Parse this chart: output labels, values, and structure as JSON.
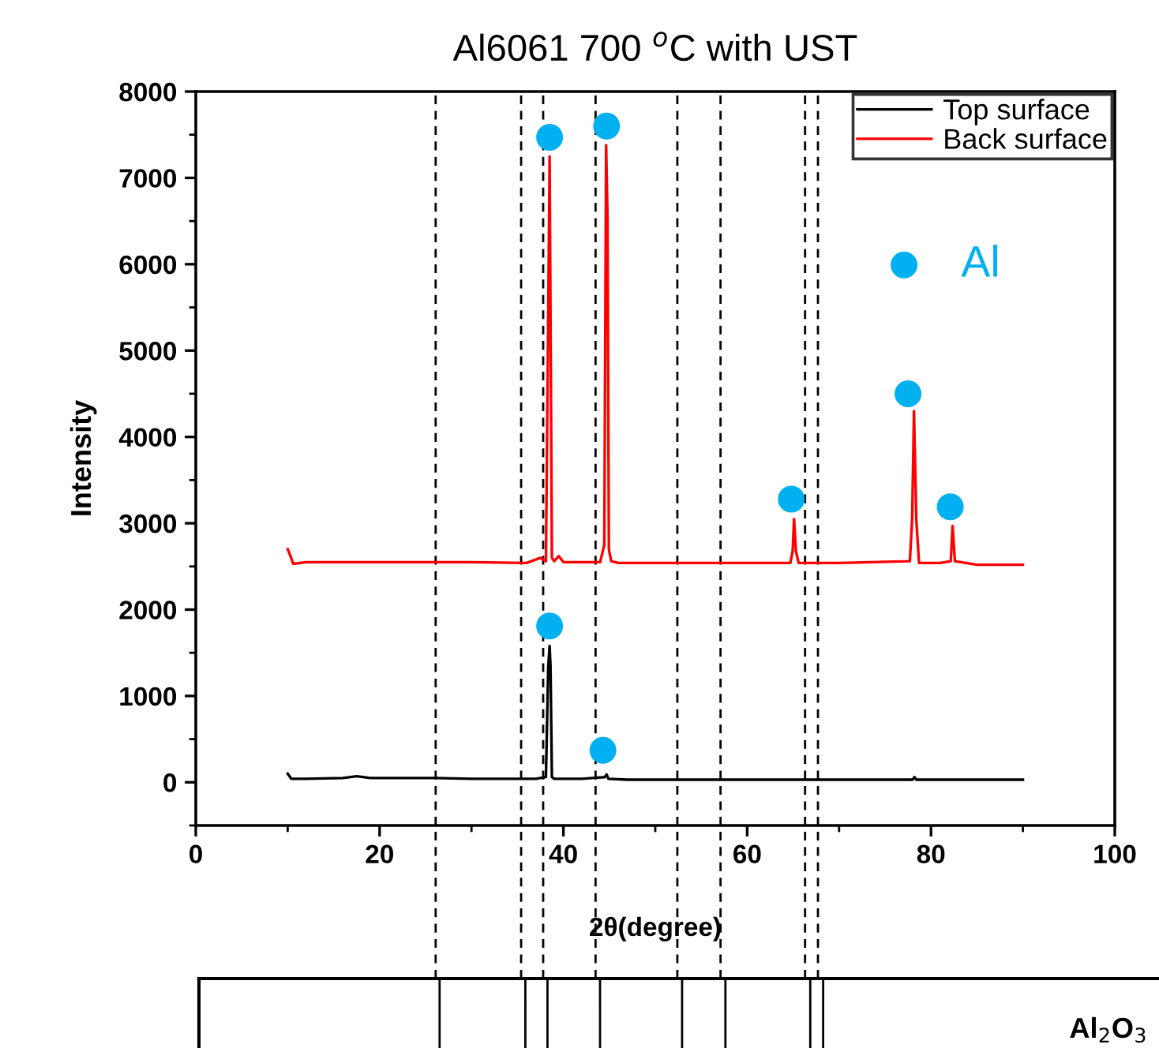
{
  "chart_data": {
    "type": "line",
    "title": "Al6061 700 $^{o}$C with UST",
    "xlabel": "2θ(degree)",
    "ylabel": "Intensity",
    "xlim": [
      0,
      100
    ],
    "xticks": [
      0,
      20,
      40,
      60,
      80,
      100
    ],
    "ylim": [
      -500,
      8000
    ],
    "yticks": [
      0,
      1000,
      2000,
      3000,
      4000,
      5000,
      6000,
      7000,
      8000
    ],
    "grid": false,
    "legend": "top right",
    "series": [
      {
        "name": "Top surface",
        "color": "#000000",
        "x": [
          10,
          10.4,
          12,
          16,
          17.5,
          19,
          26,
          30,
          37,
          38.1,
          38.35,
          38.5,
          38.6,
          38.75,
          39,
          42,
          44.5,
          44.7,
          44.9,
          47,
          55,
          66,
          70,
          78,
          78.2,
          78.4,
          85,
          90
        ],
        "values": [
          100,
          40,
          40,
          50,
          70,
          50,
          50,
          40,
          40,
          60,
          1340,
          1580,
          1340,
          60,
          40,
          40,
          60,
          90,
          40,
          30,
          30,
          30,
          30,
          30,
          60,
          30,
          30,
          30
        ]
      },
      {
        "name": "Back surface",
        "color": "#ff0000",
        "x": [
          10,
          10.3,
          10.6,
          12,
          20,
          26,
          30,
          36,
          37.5,
          38.1,
          38.35,
          38.5,
          38.6,
          38.75,
          39,
          39.5,
          40,
          44,
          44.45,
          44.65,
          44.8,
          44.95,
          45.2,
          46,
          55,
          64.7,
          64.95,
          65.1,
          65.3,
          65.6,
          70,
          77.7,
          77.95,
          78.15,
          78.4,
          78.7,
          81,
          82.15,
          82.35,
          82.6,
          85,
          90
        ],
        "values": [
          2700,
          2620,
          2530,
          2550,
          2550,
          2550,
          2550,
          2540,
          2600,
          2560,
          5400,
          7250,
          5400,
          2600,
          2560,
          2620,
          2550,
          2550,
          2750,
          7380,
          6550,
          2700,
          2560,
          2540,
          2540,
          2540,
          2680,
          3050,
          2680,
          2540,
          2540,
          2560,
          3050,
          4300,
          3050,
          2540,
          2540,
          2560,
          2970,
          2560,
          2520,
          2520
        ]
      },
      {
        "name": "Al",
        "type": "scatter",
        "marker": "circle",
        "color": "#00b0f0",
        "x": [
          38.5,
          44.7,
          64.8,
          77.5,
          82.1,
          38.5,
          44.3
        ],
        "values": [
          7470,
          7600,
          3280,
          4500,
          3190,
          1810,
          370
        ]
      }
    ],
    "ref_lines": [
      {
        "axis": "x",
        "value": 26.1,
        "color": "#000000",
        "line_style": "dashed"
      },
      {
        "axis": "x",
        "value": 35.4,
        "color": "#000000",
        "line_style": "dashed"
      },
      {
        "axis": "x",
        "value": 37.8,
        "color": "#000000",
        "line_style": "dashed"
      },
      {
        "axis": "x",
        "value": 43.5,
        "color": "#000000",
        "line_style": "dashed"
      },
      {
        "axis": "x",
        "value": 52.4,
        "color": "#000000",
        "line_style": "dashed"
      },
      {
        "axis": "x",
        "value": 57.1,
        "color": "#000000",
        "line_style": "dashed"
      },
      {
        "axis": "x",
        "value": 66.3,
        "color": "#000000",
        "line_style": "dashed"
      },
      {
        "axis": "x",
        "value": 67.7,
        "color": "#000000",
        "line_style": "dashed"
      }
    ],
    "annotations": [
      "Al$_{2}$O$_{3}$"
    ]
  }
}
